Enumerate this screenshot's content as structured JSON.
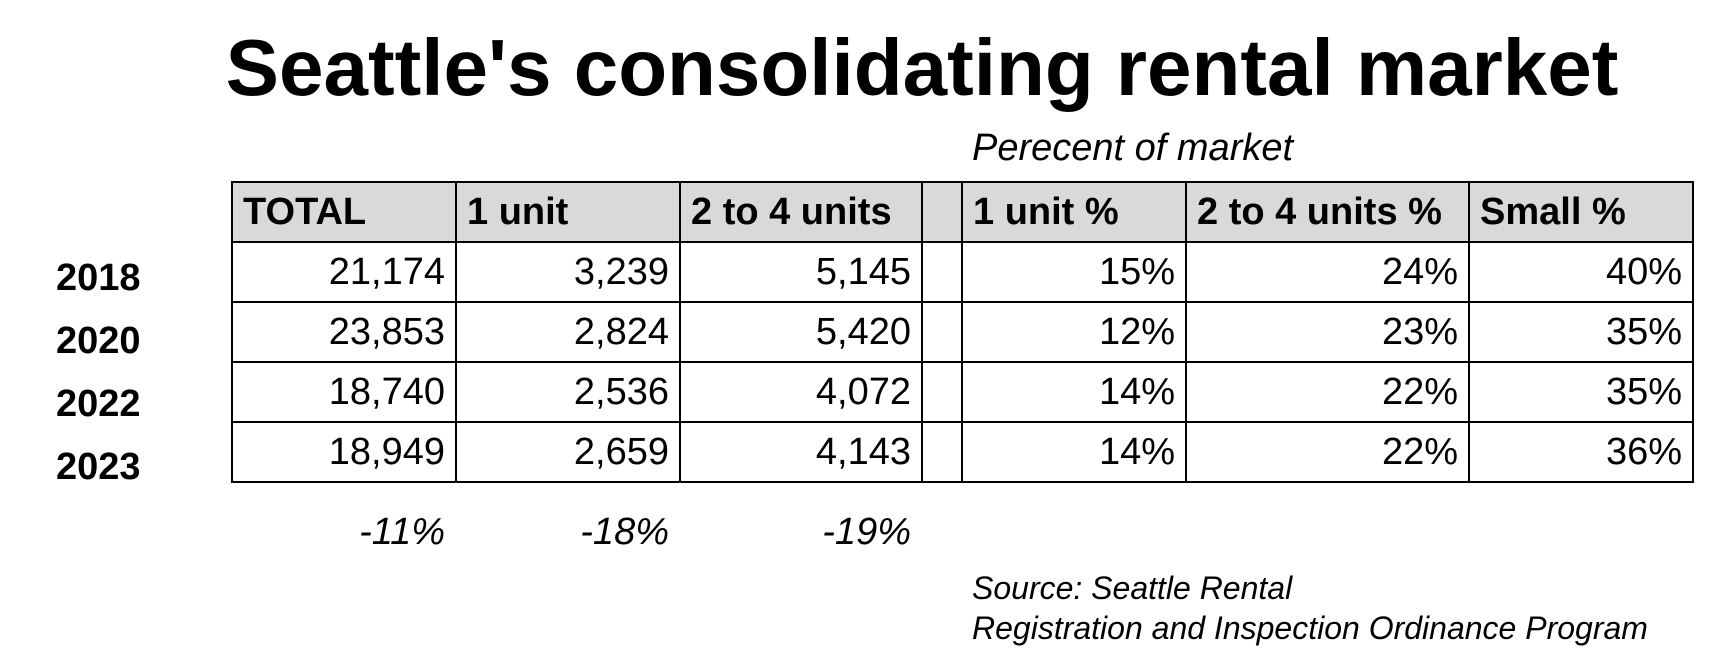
{
  "title": "Seattle's consolidating rental market",
  "subheader": "Perecent of market",
  "headers": {
    "total": "TOTAL",
    "one_unit": "1 unit",
    "two_to_four": "2 to 4 units",
    "one_unit_pct": "1 unit %",
    "two_to_four_pct": "2 to 4 units %",
    "small_pct": "Small %"
  },
  "rows": [
    {
      "year": "2018",
      "total": "21,174",
      "one_unit": "3,239",
      "two_to_four": "5,145",
      "one_unit_pct": "15%",
      "two_to_four_pct": "24%",
      "small_pct": "40%"
    },
    {
      "year": "2020",
      "total": "23,853",
      "one_unit": "2,824",
      "two_to_four": "5,420",
      "one_unit_pct": "12%",
      "two_to_four_pct": "23%",
      "small_pct": "35%"
    },
    {
      "year": "2022",
      "total": "18,740",
      "one_unit": "2,536",
      "two_to_four": "4,072",
      "one_unit_pct": "14%",
      "two_to_four_pct": "22%",
      "small_pct": "35%"
    },
    {
      "year": "2023",
      "total": "18,949",
      "one_unit": "2,659",
      "two_to_four": "4,143",
      "one_unit_pct": "14%",
      "two_to_four_pct": "22%",
      "small_pct": "36%"
    }
  ],
  "change": {
    "total": "-11%",
    "one_unit": "-18%",
    "two_to_four": "-19%"
  },
  "source": {
    "line1": "Source: Seattle Rental",
    "line2": "Registration and Inspection Ordinance Program"
  },
  "colors": {
    "header_fill": "#d9d9d9",
    "border": "#000000"
  },
  "chart_data": {
    "type": "table",
    "title": "Seattle's consolidating rental market",
    "columns": [
      "TOTAL",
      "1 unit",
      "2 to 4 units",
      "1 unit %",
      "2 to 4 units %",
      "Small %"
    ],
    "row_labels": [
      "2018",
      "2020",
      "2022",
      "2023"
    ],
    "values": [
      [
        21174,
        3239,
        5145,
        15,
        24,
        40
      ],
      [
        23853,
        2824,
        5420,
        12,
        23,
        35
      ],
      [
        18740,
        2536,
        4072,
        14,
        22,
        35
      ],
      [
        18949,
        2659,
        4143,
        14,
        22,
        36
      ]
    ],
    "change_row": [
      -11,
      -18,
      -19
    ]
  }
}
